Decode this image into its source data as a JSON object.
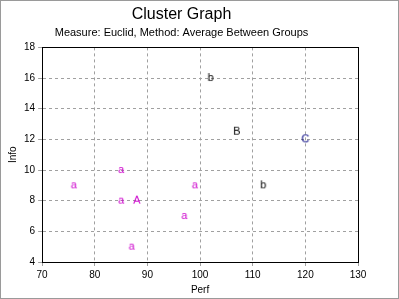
{
  "chart_data": {
    "type": "scatter",
    "title": "Cluster Graph",
    "subtitle": "Measure: Euclid, Method: Average Between Groups",
    "x_label": "Perf",
    "y_label": "Info",
    "xlim": [
      70,
      130
    ],
    "xticks": [
      70,
      80,
      90,
      100,
      110,
      120,
      130
    ],
    "ylim": [
      4,
      18
    ],
    "yticks": [
      4,
      6,
      8,
      10,
      12,
      14,
      16,
      18
    ],
    "grid": true,
    "series": [
      {
        "marker": "a",
        "color": "#cc00cc",
        "x": [
          76,
          85,
          85,
          87,
          97,
          99
        ],
        "values": [
          9,
          10,
          8,
          5,
          7,
          9
        ]
      },
      {
        "marker": "A",
        "color": "#cc00cc",
        "x": [
          88
        ],
        "values": [
          8
        ]
      },
      {
        "marker": "b",
        "color": "#000000",
        "x": [
          102,
          112
        ],
        "values": [
          16,
          9
        ]
      },
      {
        "marker": "B",
        "color": "#000000",
        "x": [
          107
        ],
        "values": [
          12.5
        ]
      },
      {
        "marker": "C",
        "color": "#000080",
        "x": [
          120
        ],
        "values": [
          12
        ]
      }
    ]
  }
}
